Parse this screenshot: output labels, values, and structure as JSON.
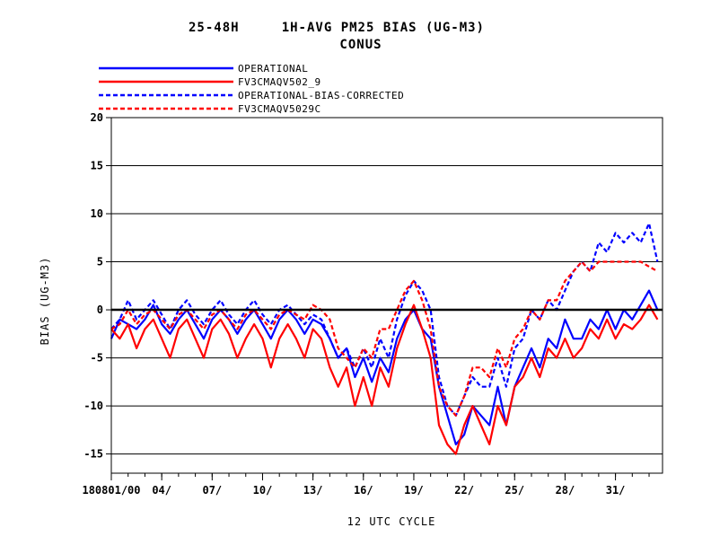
{
  "chart_data": {
    "type": "line",
    "title_line1": "25-48H     1H-AVG PM25 BIAS (UG-M3)",
    "title_line2": "CONUS",
    "xlabel": "12 UTC CYCLE",
    "ylabel": "BIAS (UG-M3)",
    "ylim": [
      -17,
      20
    ],
    "yticks": [
      -15,
      -10,
      -5,
      0,
      5,
      10,
      15,
      20
    ],
    "xlim": [
      0,
      32.8
    ],
    "xticks": [
      {
        "x": 0,
        "label": "180801/00"
      },
      {
        "x": 3,
        "label": "04/"
      },
      {
        "x": 6,
        "label": "07/"
      },
      {
        "x": 9,
        "label": "10/"
      },
      {
        "x": 12,
        "label": "13/"
      },
      {
        "x": 15,
        "label": "16/"
      },
      {
        "x": 18,
        "label": "19/"
      },
      {
        "x": 21,
        "label": "22/"
      },
      {
        "x": 24,
        "label": "25/"
      },
      {
        "x": 27,
        "label": "28/"
      },
      {
        "x": 30,
        "label": "31/"
      }
    ],
    "grid": "horizontal",
    "zero_line": true,
    "legend_position": "top-left",
    "series": [
      {
        "name": "OPERATIONAL",
        "color": "#0000ff",
        "style": "solid",
        "x": [
          0,
          0.5,
          1,
          1.5,
          2,
          2.5,
          3,
          3.5,
          4,
          4.5,
          5,
          5.5,
          6,
          6.5,
          7,
          7.5,
          8,
          8.5,
          9,
          9.5,
          10,
          10.5,
          11,
          11.5,
          12,
          12.5,
          13,
          13.5,
          14,
          14.5,
          15,
          15.5,
          16,
          16.5,
          17,
          17.5,
          18,
          18.5,
          19,
          19.5,
          20,
          20.5,
          21,
          21.5,
          22,
          22.5,
          23,
          23.5,
          24,
          24.5,
          25,
          25.5,
          26,
          26.5,
          27,
          27.5,
          28,
          28.5,
          29,
          29.5,
          30,
          30.5,
          31,
          31.5,
          32,
          32.5
        ],
        "values": [
          -3,
          -1,
          -1.5,
          -2,
          -1,
          0.5,
          -1.5,
          -2.5,
          -1,
          0,
          -1.5,
          -3,
          -1,
          0,
          -1,
          -2.5,
          -1,
          0,
          -1.5,
          -3,
          -1,
          0,
          -1,
          -2.5,
          -1,
          -1.5,
          -3,
          -5,
          -4,
          -7,
          -5,
          -7.5,
          -5,
          -6.5,
          -3,
          -1,
          0,
          -2,
          -3,
          -8,
          -11,
          -14,
          -13,
          -10,
          -11,
          -12,
          -8,
          -12,
          -8,
          -6,
          -4,
          -6,
          -3,
          -4,
          -1,
          -3,
          -3,
          -1,
          -2,
          0,
          -2,
          0,
          -1,
          0.5,
          2,
          0
        ]
      },
      {
        "name": "FV3CMAQV502_9",
        "color": "#ff0000",
        "style": "solid",
        "x": [
          0,
          0.5,
          1,
          1.5,
          2,
          2.5,
          3,
          3.5,
          4,
          4.5,
          5,
          5.5,
          6,
          6.5,
          7,
          7.5,
          8,
          8.5,
          9,
          9.5,
          10,
          10.5,
          11,
          11.5,
          12,
          12.5,
          13,
          13.5,
          14,
          14.5,
          15,
          15.5,
          16,
          16.5,
          17,
          17.5,
          18,
          18.5,
          19,
          19.5,
          20,
          20.5,
          21,
          21.5,
          22,
          22.5,
          23,
          23.5,
          24,
          24.5,
          25,
          25.5,
          26,
          26.5,
          27,
          27.5,
          28,
          28.5,
          29,
          29.5,
          30,
          30.5,
          31,
          31.5,
          32,
          32.5
        ],
        "values": [
          -2,
          -3,
          -1.5,
          -4,
          -2,
          -1,
          -3,
          -5,
          -2,
          -1,
          -3,
          -5,
          -2,
          -1,
          -2.5,
          -5,
          -3,
          -1.5,
          -3,
          -6,
          -3,
          -1.5,
          -3,
          -5,
          -2,
          -3,
          -6,
          -8,
          -6,
          -10,
          -7,
          -10,
          -6,
          -8,
          -4,
          -1.5,
          0.5,
          -2,
          -5,
          -12,
          -14,
          -15,
          -12,
          -10,
          -12,
          -14,
          -10,
          -12,
          -8,
          -7,
          -5,
          -7,
          -4,
          -5,
          -3,
          -5,
          -4,
          -2,
          -3,
          -1,
          -3,
          -1.5,
          -2,
          -1,
          0.5,
          -1
        ]
      },
      {
        "name": "OPERATIONAL-BIAS-CORRECTED",
        "color": "#0000ff",
        "style": "dashed",
        "x": [
          0,
          0.5,
          1,
          1.5,
          2,
          2.5,
          3,
          3.5,
          4,
          4.5,
          5,
          5.5,
          6,
          6.5,
          7,
          7.5,
          8,
          8.5,
          9,
          9.5,
          10,
          10.5,
          11,
          11.5,
          12,
          12.5,
          13,
          13.5,
          14,
          14.5,
          15,
          15.5,
          16,
          16.5,
          17,
          17.5,
          18,
          18.5,
          19,
          19.5,
          20,
          20.5,
          21,
          21.5,
          22,
          22.5,
          23,
          23.5,
          24,
          24.5,
          25,
          25.5,
          26,
          26.5,
          27,
          27.5,
          28,
          28.5,
          29,
          29.5,
          30,
          30.5,
          31,
          31.5,
          32,
          32.5
        ],
        "values": [
          -2,
          -1,
          1,
          -1,
          0,
          1,
          -0.5,
          -2,
          0,
          1,
          -0.5,
          -1.5,
          0,
          1,
          -0.5,
          -1.5,
          0,
          1,
          -0.5,
          -1.5,
          0,
          0.5,
          -0.5,
          -1.5,
          -0.5,
          -1,
          -3,
          -5,
          -4,
          -6,
          -4,
          -6,
          -3,
          -5,
          -1,
          1.5,
          3,
          2,
          0,
          -7,
          -10,
          -11,
          -9,
          -7,
          -8,
          -8,
          -5,
          -8,
          -4,
          -3,
          0,
          -1,
          1,
          0,
          2,
          4,
          5,
          4,
          7,
          6,
          8,
          7,
          8,
          7,
          9,
          5
        ]
      },
      {
        "name": "FV3CMAQV5029C",
        "color": "#ff0000",
        "style": "dashed",
        "x": [
          0,
          0.5,
          1,
          1.5,
          2,
          2.5,
          3,
          3.5,
          4,
          4.5,
          5,
          5.5,
          6,
          6.5,
          7,
          7.5,
          8,
          8.5,
          9,
          9.5,
          10,
          10.5,
          11,
          11.5,
          12,
          12.5,
          13,
          13.5,
          14,
          14.5,
          15,
          15.5,
          16,
          16.5,
          17,
          17.5,
          18,
          18.5,
          19,
          19.5,
          20,
          20.5,
          21,
          21.5,
          22,
          22.5,
          23,
          23.5,
          24,
          24.5,
          25,
          25.5,
          26,
          26.5,
          27,
          27.5,
          28,
          28.5,
          29,
          29.5,
          30,
          30.5,
          31,
          31.5,
          32,
          32.5
        ],
        "values": [
          -2,
          -1.5,
          0,
          -1.5,
          -0.5,
          0,
          -1,
          -2,
          -0.5,
          0,
          -1,
          -2,
          -0.5,
          0,
          -1,
          -2,
          -0.5,
          0,
          -1,
          -2,
          -0.5,
          0,
          -0.5,
          -1,
          0.5,
          0,
          -1,
          -4,
          -5,
          -6,
          -4,
          -5,
          -2,
          -2,
          0,
          2,
          3,
          1,
          -2,
          -8,
          -10,
          -11,
          -9,
          -6,
          -6,
          -7,
          -4,
          -6,
          -3,
          -2,
          0,
          -1,
          1,
          1,
          3,
          4,
          5,
          4,
          5,
          5,
          5,
          5,
          5,
          5,
          4.5,
          4
        ]
      }
    ]
  }
}
